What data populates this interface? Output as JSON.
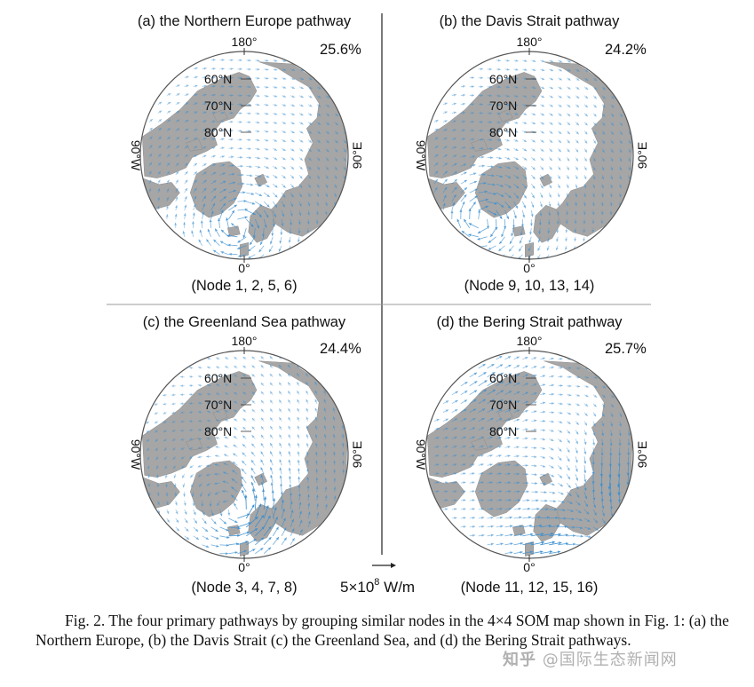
{
  "panels": [
    {
      "title": "(a) the Northern Europe pathway",
      "percent": "25.6%",
      "nodes": "(Node 1, 2, 5, 6)",
      "pattern": "europe"
    },
    {
      "title": "(b) the Davis Strait pathway",
      "percent": "24.2%",
      "nodes": "(Node 9, 10, 13, 14)",
      "pattern": "davis"
    },
    {
      "title": "(c) the Greenland Sea pathway",
      "percent": "24.4%",
      "nodes": "(Node 3, 4, 7, 8)",
      "pattern": "greenland"
    },
    {
      "title": "(d) the Bering Strait pathway",
      "percent": "25.7%",
      "nodes": "(Node 11, 12, 15, 16)",
      "pattern": "bering"
    }
  ],
  "labels": {
    "top": "180°",
    "bottom": "0°",
    "left": "90°W",
    "right": "90°E",
    "lat60": "60°N",
    "lat70": "70°N",
    "lat80": "80°N"
  },
  "scale": {
    "prefix": "5×10",
    "exponent": "8",
    "suffix": " W/m"
  },
  "caption": "Fig. 2. The four primary pathways by grouping similar nodes in the 4×4 SOM map shown in Fig. 1: (a) the Northern Europe, (b) the Davis Strait (c) the Greenland Sea, and (d) the Bering Strait pathways.",
  "watermark": {
    "logo": "知乎",
    "text": "@国际生态新闻网"
  },
  "colors": {
    "land": "#a6a6a6",
    "ocean": "#ffffff",
    "arrow": "#3b8fd0",
    "frame": "#555555"
  }
}
